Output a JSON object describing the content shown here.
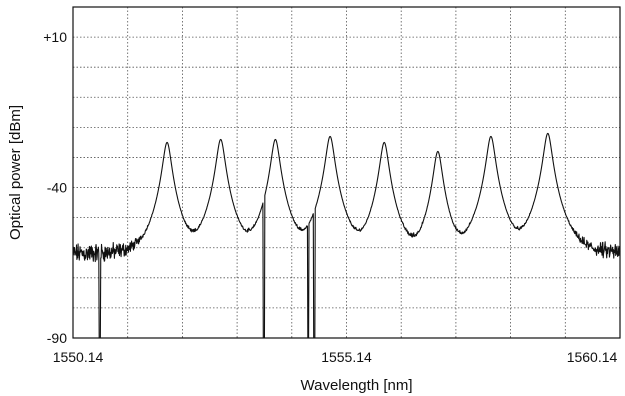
{
  "chart_data": {
    "type": "line",
    "title": "",
    "xlabel": "Wavelength [nm]",
    "ylabel": "Optical power [dBm]",
    "xlim": [
      1550.14,
      1560.14
    ],
    "ylim": [
      -90,
      20
    ],
    "grid": true,
    "x_tick_labels": [
      {
        "value": 1550.14,
        "label": "1550.14"
      },
      {
        "value": 1555.14,
        "label": "1555.14"
      },
      {
        "value": 1560.14,
        "label": "1560.14"
      }
    ],
    "y_tick_labels": [
      {
        "value": 10,
        "label": "+10"
      },
      {
        "value": -40,
        "label": "-40"
      },
      {
        "value": -90,
        "label": "-90"
      }
    ],
    "y_grid_values": [
      20,
      10,
      0,
      -10,
      -20,
      -30,
      -40,
      -50,
      -60,
      -70,
      -80,
      -90
    ],
    "x_grid_values": [
      1550.14,
      1551.14,
      1552.14,
      1553.14,
      1554.14,
      1555.14,
      1556.14,
      1557.14,
      1558.14,
      1559.14,
      1560.14
    ],
    "noise_floor_dbm": -62,
    "series": [
      {
        "color": "#111111",
        "peaks": [
          {
            "x": 1551.86,
            "y": -25
          },
          {
            "x": 1552.84,
            "y": -24
          },
          {
            "x": 1553.84,
            "y": -24
          },
          {
            "x": 1554.84,
            "y": -23
          },
          {
            "x": 1555.83,
            "y": -25
          },
          {
            "x": 1556.81,
            "y": -28
          },
          {
            "x": 1557.78,
            "y": -23
          },
          {
            "x": 1558.82,
            "y": -22
          }
        ],
        "dips": [
          {
            "x": 1550.63,
            "y": -90
          },
          {
            "x": 1553.63,
            "y": -90
          },
          {
            "x": 1554.44,
            "y": -90
          },
          {
            "x": 1554.55,
            "y": -90
          }
        ]
      }
    ]
  }
}
